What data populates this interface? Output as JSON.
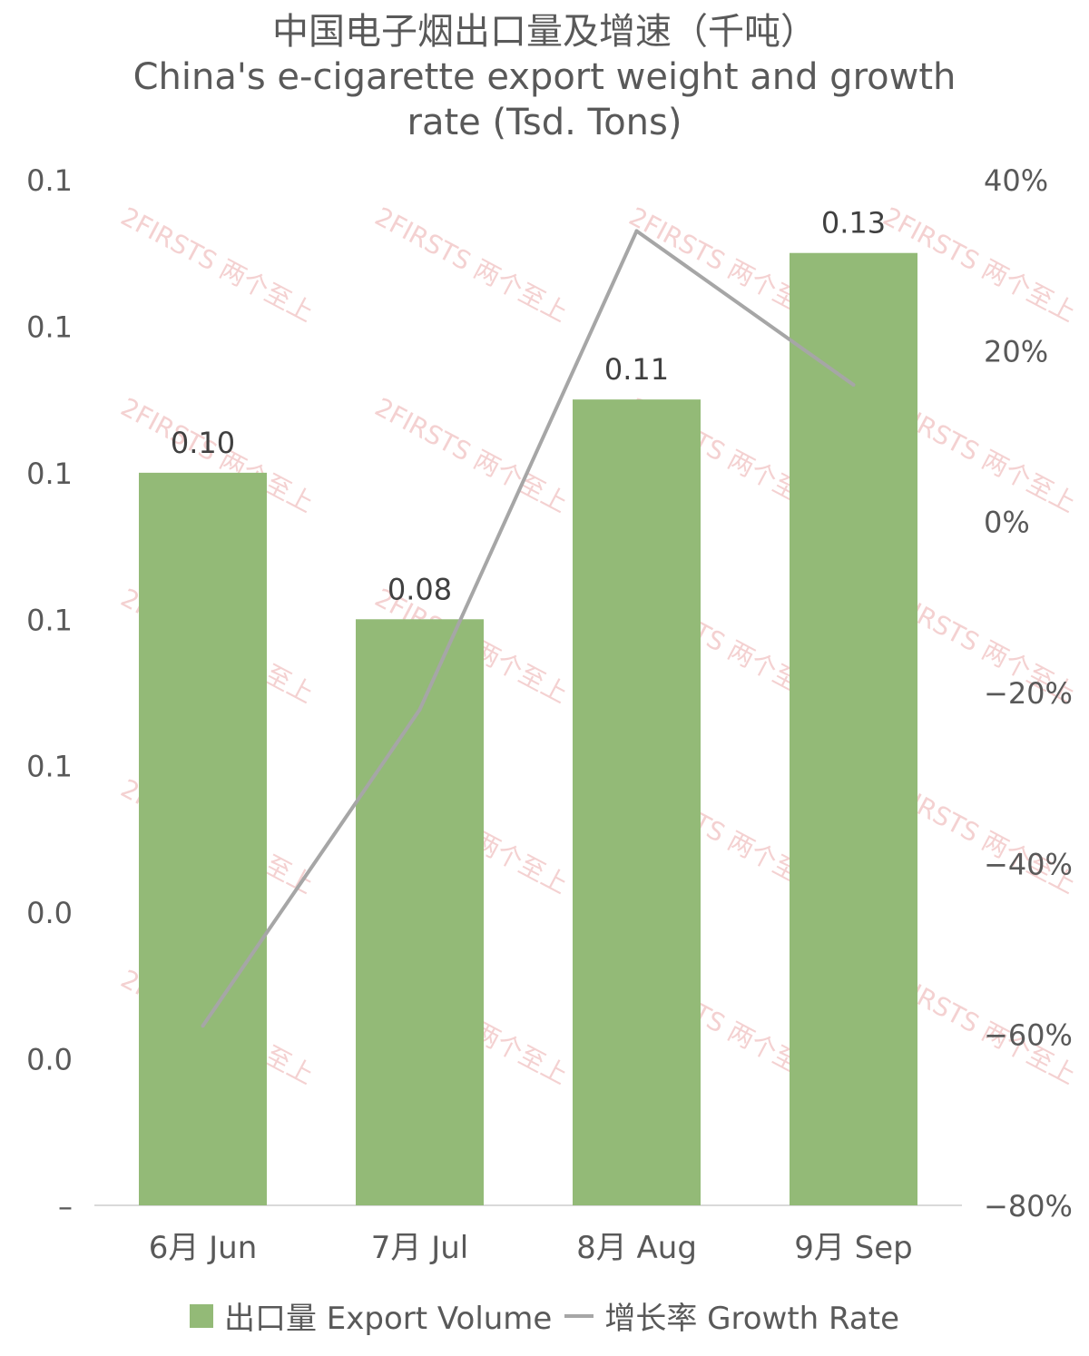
{
  "chart_data": {
    "type": "bar",
    "title_zh": "中国电子烟出口量及增速（千吨）",
    "title_en_line1": "China's e-cigarette export weight and growth",
    "title_en_line2": "rate (Tsd. Tons)",
    "categories": [
      "6月 Jun",
      "7月 Jul",
      "8月 Aug",
      "9月 Sep"
    ],
    "series": [
      {
        "name": "出口量 Export Volume",
        "type": "bar",
        "axis": "left",
        "values": [
          0.1,
          0.08,
          0.11,
          0.13
        ],
        "value_labels": [
          "0.10",
          "0.08",
          "0.11",
          "0.13"
        ],
        "color": "#93ba77"
      },
      {
        "name": "增长率 Growth Rate",
        "type": "line",
        "axis": "right",
        "values": [
          -59,
          -22,
          34,
          16
        ],
        "color": "#a6a6a6"
      }
    ],
    "left_axis": {
      "ticks": [
        "–",
        "0.0",
        "0.0",
        "0.1",
        "0.1",
        "0.1",
        "0.1",
        "0.1"
      ],
      "ylim": [
        0,
        0.14
      ]
    },
    "right_axis": {
      "ticks": [
        "-80%",
        "-60%",
        "-40%",
        "-20%",
        "0%",
        "20%",
        "40%"
      ],
      "ylim": [
        -80,
        40
      ]
    },
    "grid": false,
    "legend_position": "bottom"
  },
  "watermark": "2FIRSTS 两个至上"
}
